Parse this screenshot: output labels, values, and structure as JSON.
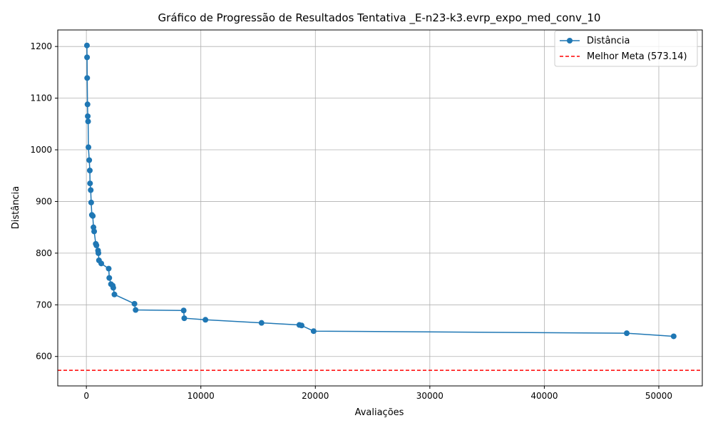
{
  "chart_data": {
    "type": "line",
    "title": "Gráfico de Progressão de Resultados Tentativa _E-n23-k3.evrp_expo_med_conv_10",
    "xlabel": "Avaliações",
    "ylabel": "Distância",
    "xlim": [
      -2500,
      53800
    ],
    "ylim": [
      543,
      1232
    ],
    "xticks": [
      0,
      10000,
      20000,
      30000,
      40000,
      50000
    ],
    "yticks": [
      600,
      700,
      800,
      900,
      1000,
      1100,
      1200
    ],
    "grid": true,
    "legend_position": "top-right",
    "series": [
      {
        "name": "Distância",
        "color": "#1f77b4",
        "marker": "circle",
        "points": [
          [
            50,
            1202
          ],
          [
            60,
            1179
          ],
          [
            70,
            1139
          ],
          [
            100,
            1088
          ],
          [
            120,
            1065
          ],
          [
            150,
            1055
          ],
          [
            180,
            1005
          ],
          [
            250,
            980
          ],
          [
            300,
            960
          ],
          [
            320,
            935
          ],
          [
            380,
            922
          ],
          [
            420,
            898
          ],
          [
            480,
            874
          ],
          [
            560,
            872
          ],
          [
            620,
            850
          ],
          [
            680,
            842
          ],
          [
            820,
            818
          ],
          [
            880,
            815
          ],
          [
            1020,
            805
          ],
          [
            1050,
            800
          ],
          [
            1100,
            786
          ],
          [
            1300,
            780
          ],
          [
            1950,
            770
          ],
          [
            2000,
            752
          ],
          [
            2150,
            740
          ],
          [
            2300,
            737
          ],
          [
            2350,
            733
          ],
          [
            2450,
            720
          ],
          [
            4200,
            702
          ],
          [
            4300,
            690
          ],
          [
            8500,
            689
          ],
          [
            8550,
            674
          ],
          [
            10400,
            671
          ],
          [
            15300,
            665
          ],
          [
            18600,
            661
          ],
          [
            18800,
            660
          ],
          [
            19850,
            649
          ],
          [
            47200,
            645
          ],
          [
            51300,
            639
          ]
        ]
      }
    ],
    "reference_lines": [
      {
        "name": "Melhor Meta (573.14)",
        "y": 573.14,
        "color": "#ff0000",
        "style": "dashed"
      }
    ]
  }
}
